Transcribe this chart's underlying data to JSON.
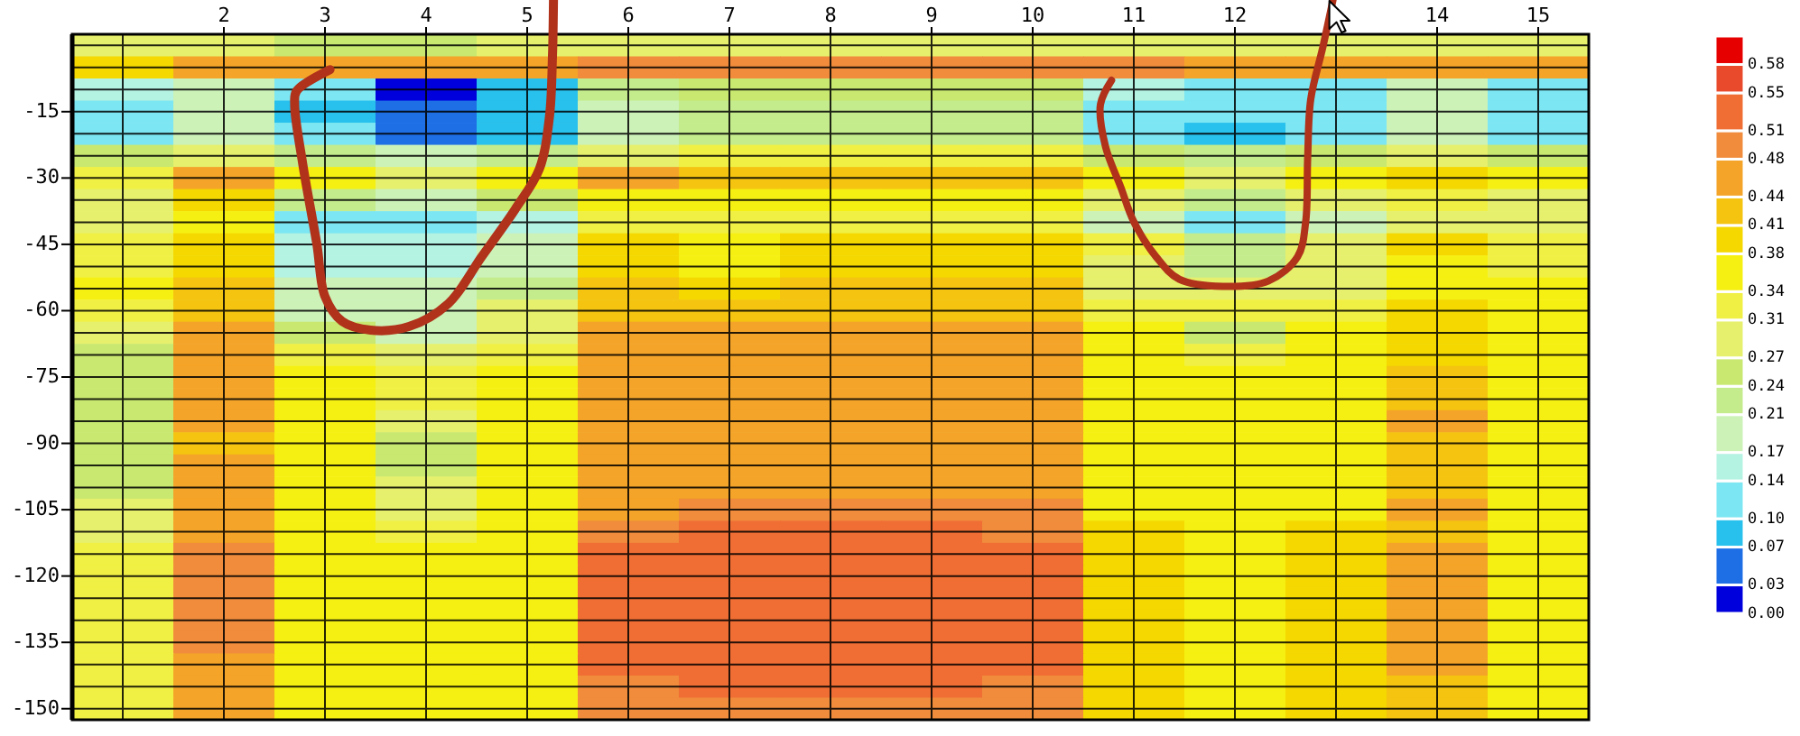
{
  "chart_data": {
    "type": "heatmap",
    "categories": [
      null,
      "2",
      "3",
      "4",
      "5",
      "6",
      "7",
      "8",
      "9",
      "10",
      "11",
      "12",
      null,
      "14",
      "15"
    ],
    "y_categories": [
      null,
      null,
      null,
      "-15",
      null,
      null,
      "-30",
      null,
      null,
      "-45",
      null,
      null,
      "-60",
      null,
      null,
      "-75",
      null,
      null,
      "-90",
      null,
      null,
      "-105",
      null,
      null,
      "-120",
      null,
      null,
      "-135",
      null,
      null,
      "-150"
    ],
    "cells": [
      [
        0.27,
        0.28,
        0.26,
        0.25,
        0.28,
        0.3,
        0.3,
        0.3,
        0.3,
        0.3,
        0.28,
        0.3,
        0.3,
        0.3,
        0.3
      ],
      [
        0.4,
        0.45,
        0.45,
        0.45,
        0.45,
        0.5,
        0.5,
        0.5,
        0.5,
        0.5,
        0.48,
        0.45,
        0.45,
        0.45,
        0.45
      ],
      [
        0.14,
        0.2,
        0.1,
        0.02,
        0.08,
        0.22,
        0.25,
        0.25,
        0.25,
        0.24,
        0.15,
        0.12,
        0.12,
        0.2,
        0.13
      ],
      [
        0.12,
        0.18,
        0.09,
        0.06,
        0.09,
        0.2,
        0.23,
        0.23,
        0.23,
        0.22,
        0.12,
        0.11,
        0.12,
        0.18,
        0.12
      ],
      [
        0.12,
        0.18,
        0.1,
        0.05,
        0.09,
        0.2,
        0.23,
        0.23,
        0.23,
        0.22,
        0.12,
        0.09,
        0.12,
        0.18,
        0.12
      ],
      [
        0.25,
        0.3,
        0.22,
        0.2,
        0.22,
        0.3,
        0.32,
        0.32,
        0.32,
        0.32,
        0.25,
        0.22,
        0.25,
        0.28,
        0.25
      ],
      [
        0.33,
        0.45,
        0.36,
        0.29,
        0.35,
        0.45,
        0.43,
        0.43,
        0.43,
        0.42,
        0.36,
        0.3,
        0.35,
        0.4,
        0.36
      ],
      [
        0.3,
        0.38,
        0.22,
        0.18,
        0.24,
        0.36,
        0.35,
        0.35,
        0.35,
        0.35,
        0.28,
        0.22,
        0.28,
        0.33,
        0.3
      ],
      [
        0.3,
        0.35,
        0.13,
        0.13,
        0.15,
        0.33,
        0.33,
        0.33,
        0.33,
        0.33,
        0.17,
        0.1,
        0.2,
        0.3,
        0.28
      ],
      [
        0.33,
        0.39,
        0.16,
        0.15,
        0.18,
        0.38,
        0.37,
        0.38,
        0.38,
        0.38,
        0.33,
        0.22,
        0.3,
        0.39,
        0.33
      ],
      [
        0.33,
        0.4,
        0.16,
        0.16,
        0.19,
        0.39,
        0.36,
        0.4,
        0.4,
        0.4,
        0.3,
        0.22,
        0.3,
        0.35,
        0.33
      ],
      [
        0.34,
        0.41,
        0.17,
        0.17,
        0.22,
        0.41,
        0.4,
        0.42,
        0.42,
        0.42,
        0.3,
        0.28,
        0.3,
        0.35,
        0.34
      ],
      [
        0.33,
        0.43,
        0.2,
        0.19,
        0.27,
        0.43,
        0.42,
        0.43,
        0.43,
        0.43,
        0.33,
        0.32,
        0.33,
        0.38,
        0.35
      ],
      [
        0.28,
        0.44,
        0.24,
        0.18,
        0.29,
        0.45,
        0.45,
        0.45,
        0.45,
        0.45,
        0.35,
        0.25,
        0.34,
        0.39,
        0.35
      ],
      [
        0.25,
        0.45,
        0.33,
        0.27,
        0.33,
        0.46,
        0.46,
        0.46,
        0.46,
        0.46,
        0.36,
        0.32,
        0.35,
        0.4,
        0.35
      ],
      [
        0.25,
        0.45,
        0.35,
        0.31,
        0.35,
        0.46,
        0.47,
        0.47,
        0.47,
        0.47,
        0.36,
        0.35,
        0.36,
        0.42,
        0.36
      ],
      [
        0.25,
        0.46,
        0.35,
        0.32,
        0.35,
        0.46,
        0.47,
        0.47,
        0.47,
        0.47,
        0.37,
        0.36,
        0.37,
        0.43,
        0.36
      ],
      [
        0.25,
        0.45,
        0.35,
        0.3,
        0.35,
        0.46,
        0.47,
        0.47,
        0.47,
        0.47,
        0.37,
        0.36,
        0.37,
        0.44,
        0.36
      ],
      [
        0.26,
        0.43,
        0.35,
        0.26,
        0.35,
        0.46,
        0.47,
        0.47,
        0.47,
        0.47,
        0.36,
        0.36,
        0.36,
        0.42,
        0.36
      ],
      [
        0.26,
        0.45,
        0.35,
        0.26,
        0.35,
        0.46,
        0.47,
        0.47,
        0.47,
        0.47,
        0.36,
        0.36,
        0.36,
        0.42,
        0.36
      ],
      [
        0.26,
        0.46,
        0.35,
        0.27,
        0.35,
        0.46,
        0.47,
        0.47,
        0.47,
        0.47,
        0.36,
        0.36,
        0.36,
        0.43,
        0.36
      ],
      [
        0.27,
        0.46,
        0.35,
        0.3,
        0.35,
        0.47,
        0.48,
        0.48,
        0.48,
        0.48,
        0.37,
        0.36,
        0.37,
        0.44,
        0.36
      ],
      [
        0.3,
        0.47,
        0.35,
        0.33,
        0.35,
        0.5,
        0.51,
        0.51,
        0.51,
        0.5,
        0.38,
        0.36,
        0.38,
        0.43,
        0.36
      ],
      [
        0.31,
        0.48,
        0.36,
        0.34,
        0.36,
        0.51,
        0.52,
        0.52,
        0.52,
        0.51,
        0.38,
        0.37,
        0.38,
        0.45,
        0.37
      ],
      [
        0.32,
        0.49,
        0.36,
        0.34,
        0.36,
        0.52,
        0.53,
        0.53,
        0.53,
        0.52,
        0.39,
        0.37,
        0.39,
        0.46,
        0.37
      ],
      [
        0.32,
        0.49,
        0.36,
        0.34,
        0.36,
        0.52,
        0.53,
        0.54,
        0.54,
        0.53,
        0.39,
        0.37,
        0.39,
        0.47,
        0.37
      ],
      [
        0.32,
        0.49,
        0.36,
        0.34,
        0.36,
        0.52,
        0.53,
        0.53,
        0.53,
        0.53,
        0.39,
        0.37,
        0.39,
        0.47,
        0.37
      ],
      [
        0.33,
        0.48,
        0.36,
        0.34,
        0.36,
        0.52,
        0.53,
        0.53,
        0.53,
        0.52,
        0.39,
        0.37,
        0.39,
        0.46,
        0.37
      ],
      [
        0.33,
        0.47,
        0.36,
        0.34,
        0.36,
        0.51,
        0.52,
        0.52,
        0.52,
        0.51,
        0.39,
        0.37,
        0.39,
        0.44,
        0.37
      ],
      [
        0.33,
        0.46,
        0.35,
        0.34,
        0.35,
        0.5,
        0.51,
        0.51,
        0.51,
        0.5,
        0.39,
        0.36,
        0.39,
        0.43,
        0.37
      ],
      [
        0.33,
        0.46,
        0.35,
        0.34,
        0.35,
        0.5,
        0.5,
        0.5,
        0.5,
        0.5,
        0.39,
        0.36,
        0.39,
        0.43,
        0.37
      ]
    ],
    "clim": [
      0,
      0.61
    ],
    "cticks": [
      {
        "value": 0,
        "label": "0.00"
      },
      0.03,
      0.07,
      {
        "value": 0.1,
        "label": "0.10"
      },
      0.14,
      0.17,
      0.21,
      0.24,
      0.27,
      0.31,
      0.34,
      0.38,
      0.41,
      0.44,
      0.48,
      0.51,
      0.55,
      0.58
    ],
    "colors": [
      "#0000dc",
      "#1e6ee6",
      "#28c0ec",
      "#7ce6f2",
      "#b4f2e2",
      "#ccf2b8",
      "#c4ec8c",
      "#c8e870",
      "#e6f06c",
      "#f0f044",
      "#f6f012",
      "#f4d800",
      "#f4c410",
      "#f4a428",
      "#f08c3c",
      "#f06e34",
      "#ea4a2c",
      "#e60000"
    ],
    "grid": true
  }
}
